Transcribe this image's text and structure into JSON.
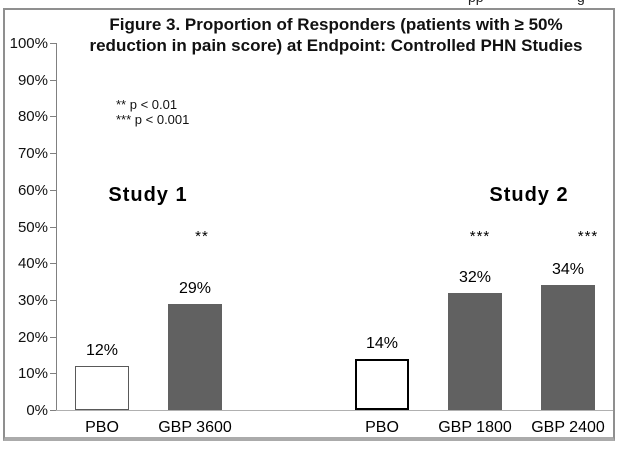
{
  "page": {
    "clipped_text": {
      "left": "pp",
      "right": "g"
    }
  },
  "chart_data": {
    "type": "bar",
    "title": "Figure 3. Proportion of Responders (patients with ≥ 50% reduction in pain score) at Endpoint: Controlled PHN Studies",
    "xlabel": "",
    "ylabel": "",
    "ylim": [
      0,
      100
    ],
    "ytick_step": 10,
    "ytick_labels": [
      "0%",
      "10%",
      "20%",
      "30%",
      "40%",
      "50%",
      "60%",
      "70%",
      "80%",
      "90%",
      "100%"
    ],
    "grid": false,
    "legend_position": "upper-left-inside",
    "p_value_key": {
      "double_asterisk": "** p < 0.01",
      "triple_asterisk": "*** p < 0.001"
    },
    "categories": [
      "PBO",
      "GBP 3600",
      "PBO",
      "GBP 1800",
      "GBP 2400"
    ],
    "values": [
      12,
      29,
      14,
      32,
      34
    ],
    "groups": [
      {
        "name": "Study 1",
        "bars": [
          {
            "category": "PBO",
            "value": 12,
            "value_label": "12%",
            "style": "placebo",
            "significance": ""
          },
          {
            "category": "GBP 3600",
            "value": 29,
            "value_label": "29%",
            "style": "treatment",
            "significance": "**"
          }
        ]
      },
      {
        "name": "Study 2",
        "bars": [
          {
            "category": "PBO",
            "value": 14,
            "value_label": "14%",
            "style": "placebo-heavy",
            "significance": ""
          },
          {
            "category": "GBP 1800",
            "value": 32,
            "value_label": "32%",
            "style": "treatment",
            "significance": "***"
          },
          {
            "category": "GBP 2400",
            "value": 34,
            "value_label": "34%",
            "style": "treatment",
            "significance": "***"
          }
        ]
      }
    ],
    "colors": {
      "treatment_fill": "#616161",
      "placebo_fill": "#ffffff",
      "axis": "#808080",
      "baseline": "#b0b0b0",
      "frame": "#8f8f8f"
    }
  }
}
